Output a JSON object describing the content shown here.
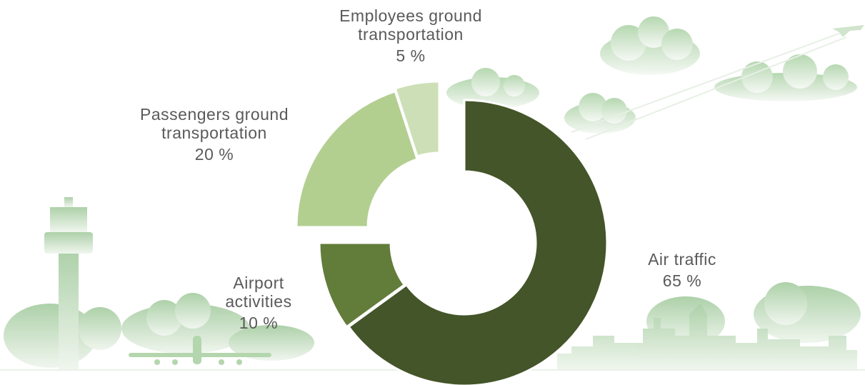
{
  "chart_data": {
    "type": "donut",
    "categories": [
      "Air traffic",
      "Airport activities",
      "Passengers ground transportation",
      "Employees ground transportation"
    ],
    "values": [
      65,
      10,
      20,
      5
    ],
    "value_labels": [
      "65 %",
      "10 %",
      "20 %",
      "5 %"
    ],
    "colors": [
      "#435529",
      "#627c3a",
      "#b3cf90",
      "#cddfb6"
    ]
  }
}
